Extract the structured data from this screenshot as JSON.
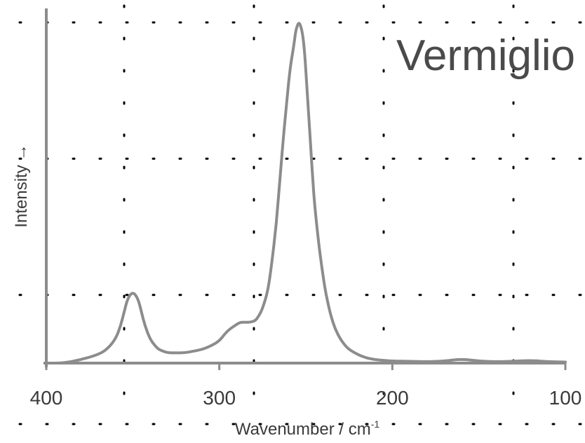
{
  "chart_data": {
    "type": "line",
    "title": "Vermiglio",
    "xlabel": "Wavenumber / cm",
    "xlabel_superscript": "-1",
    "ylabel": "Intensity",
    "ylabel_arrow": "→",
    "x_reversed": true,
    "xlim": [
      400,
      100
    ],
    "ylim": [
      0,
      1.0
    ],
    "x_ticks": [
      400,
      300,
      200,
      100
    ],
    "x_tick_labels": [
      "400",
      "300",
      "200",
      "100"
    ],
    "y_ticks_labeled": false,
    "grid": "dotted",
    "grid_x": [
      355,
      280,
      205,
      130
    ],
    "grid_y": [
      0.2,
      0.6,
      1.0
    ],
    "line_color": "#8c8c8c",
    "series": [
      {
        "x": [
          400,
          390,
          380,
          370,
          365,
          360,
          357,
          355,
          353,
          350,
          347,
          345,
          343,
          340,
          337,
          335,
          330,
          325,
          320,
          315,
          310,
          305,
          300,
          297,
          294,
          291,
          288,
          285,
          282,
          279,
          277,
          275,
          272,
          270,
          267,
          265,
          263,
          261,
          259,
          257,
          256,
          255,
          254,
          253,
          252,
          251,
          250,
          249,
          248,
          247,
          246,
          245,
          243,
          241,
          239,
          237,
          235,
          233,
          230,
          227,
          225,
          220,
          215,
          210,
          205,
          200,
          190,
          180,
          170,
          160,
          150,
          140,
          130,
          120,
          110,
          100
        ],
        "y": [
          0.0,
          0.0,
          0.01,
          0.025,
          0.04,
          0.07,
          0.11,
          0.15,
          0.19,
          0.21,
          0.19,
          0.15,
          0.11,
          0.07,
          0.05,
          0.04,
          0.03,
          0.03,
          0.03,
          0.035,
          0.04,
          0.05,
          0.065,
          0.085,
          0.1,
          0.11,
          0.12,
          0.12,
          0.12,
          0.125,
          0.14,
          0.16,
          0.21,
          0.28,
          0.41,
          0.54,
          0.66,
          0.77,
          0.87,
          0.93,
          0.97,
          0.99,
          1.0,
          0.99,
          0.97,
          0.93,
          0.86,
          0.78,
          0.7,
          0.62,
          0.54,
          0.47,
          0.37,
          0.29,
          0.22,
          0.17,
          0.13,
          0.1,
          0.07,
          0.05,
          0.04,
          0.025,
          0.015,
          0.01,
          0.008,
          0.006,
          0.005,
          0.004,
          0.006,
          0.012,
          0.006,
          0.004,
          0.005,
          0.008,
          0.004,
          0.003
        ]
      }
    ]
  }
}
